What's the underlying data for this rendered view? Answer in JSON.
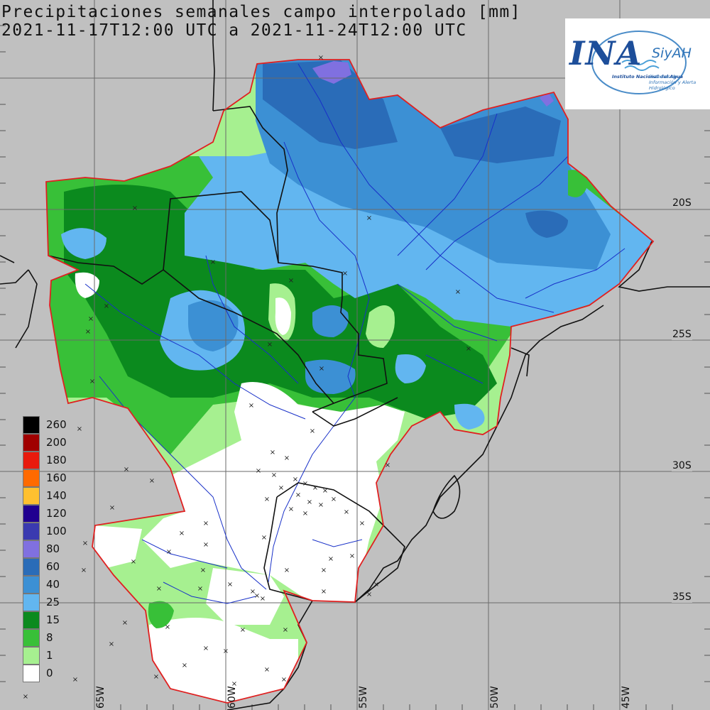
{
  "title": {
    "line1": "Precipitaciones semanales campo interpolado [mm]",
    "line2": "2021-11-17T12:00 UTC a 2021-11-24T12:00 UTC"
  },
  "logo": {
    "ina": "INA",
    "siyah": "SiyAH",
    "institute": "Instituto Nacional del Agua",
    "system": "Sistemas de Información y Alerta Hidrológico"
  },
  "lat_labels": [
    "20S",
    "25S",
    "30S",
    "35S"
  ],
  "lon_labels": [
    "65W",
    "60W",
    "55W",
    "50W",
    "45W"
  ],
  "legend": {
    "items": [
      {
        "label": "260",
        "color": "#000000"
      },
      {
        "label": "200",
        "color": "#a00000"
      },
      {
        "label": "180",
        "color": "#e81a0d"
      },
      {
        "label": "160",
        "color": "#ff6a00"
      },
      {
        "label": "140",
        "color": "#ffc030"
      },
      {
        "label": "120",
        "color": "#200090"
      },
      {
        "label": "100",
        "color": "#3a3ab0"
      },
      {
        "label": "80",
        "color": "#8070e0"
      },
      {
        "label": "60",
        "color": "#2a6cb8"
      },
      {
        "label": "40",
        "color": "#3c90d4"
      },
      {
        "label": "25",
        "color": "#62b6f0"
      },
      {
        "label": "15",
        "color": "#0b8a1e"
      },
      {
        "label": "8",
        "color": "#38c038"
      },
      {
        "label": "1",
        "color": "#a6f090"
      },
      {
        "label": "0",
        "color": "#ffffff"
      }
    ]
  }
}
